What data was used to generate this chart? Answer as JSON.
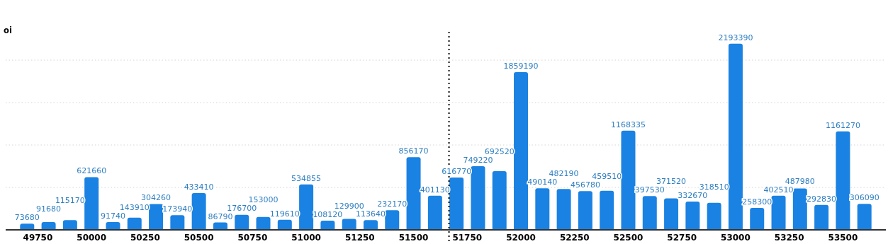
{
  "chart_data": {
    "type": "bar",
    "ylabel": "oi",
    "x": [
      49700,
      49800,
      49900,
      50000,
      50100,
      50200,
      50300,
      50400,
      50500,
      50600,
      50700,
      50800,
      50900,
      51000,
      51100,
      51200,
      51300,
      51400,
      51500,
      51600,
      51700,
      51800,
      51900,
      52000,
      52100,
      52200,
      52300,
      52400,
      52500,
      52600,
      52700,
      52800,
      52900,
      53000,
      53100,
      53200,
      53300,
      53400,
      53500,
      53600
    ],
    "values": [
      73680,
      91680,
      115170,
      621660,
      91740,
      143910,
      304260,
      173940,
      433410,
      86790,
      176700,
      153000,
      119610,
      534855,
      108120,
      129900,
      113640,
      232170,
      856170,
      401130,
      616770,
      749220,
      692520,
      1859190,
      490140,
      482190,
      456780,
      459510,
      1168335,
      397530,
      371520,
      332670,
      318510,
      2193390,
      258300,
      402510,
      487980,
      292830,
      1161270,
      306090
    ],
    "color": "#1a82e2",
    "data_labels": true,
    "xlim": [
      49600,
      53700
    ],
    "xticks": [
      49750,
      50000,
      50250,
      50500,
      50750,
      51000,
      51250,
      51500,
      51750,
      52000,
      52250,
      52500,
      52750,
      53000,
      53250,
      53500
    ],
    "yticks": [
      {
        "value": 0,
        "label": null
      },
      {
        "value": 500000,
        "label": null
      },
      {
        "value": 1000000,
        "label": null
      },
      {
        "value": 1500000,
        "label": null
      },
      {
        "value": 2000000,
        "label": null
      }
    ],
    "tick_labels": "x",
    "grid": "y",
    "ref_lines": [
      {
        "axis": "x",
        "value": 51665,
        "color": "#000000",
        "line_style": "dotted"
      }
    ]
  }
}
